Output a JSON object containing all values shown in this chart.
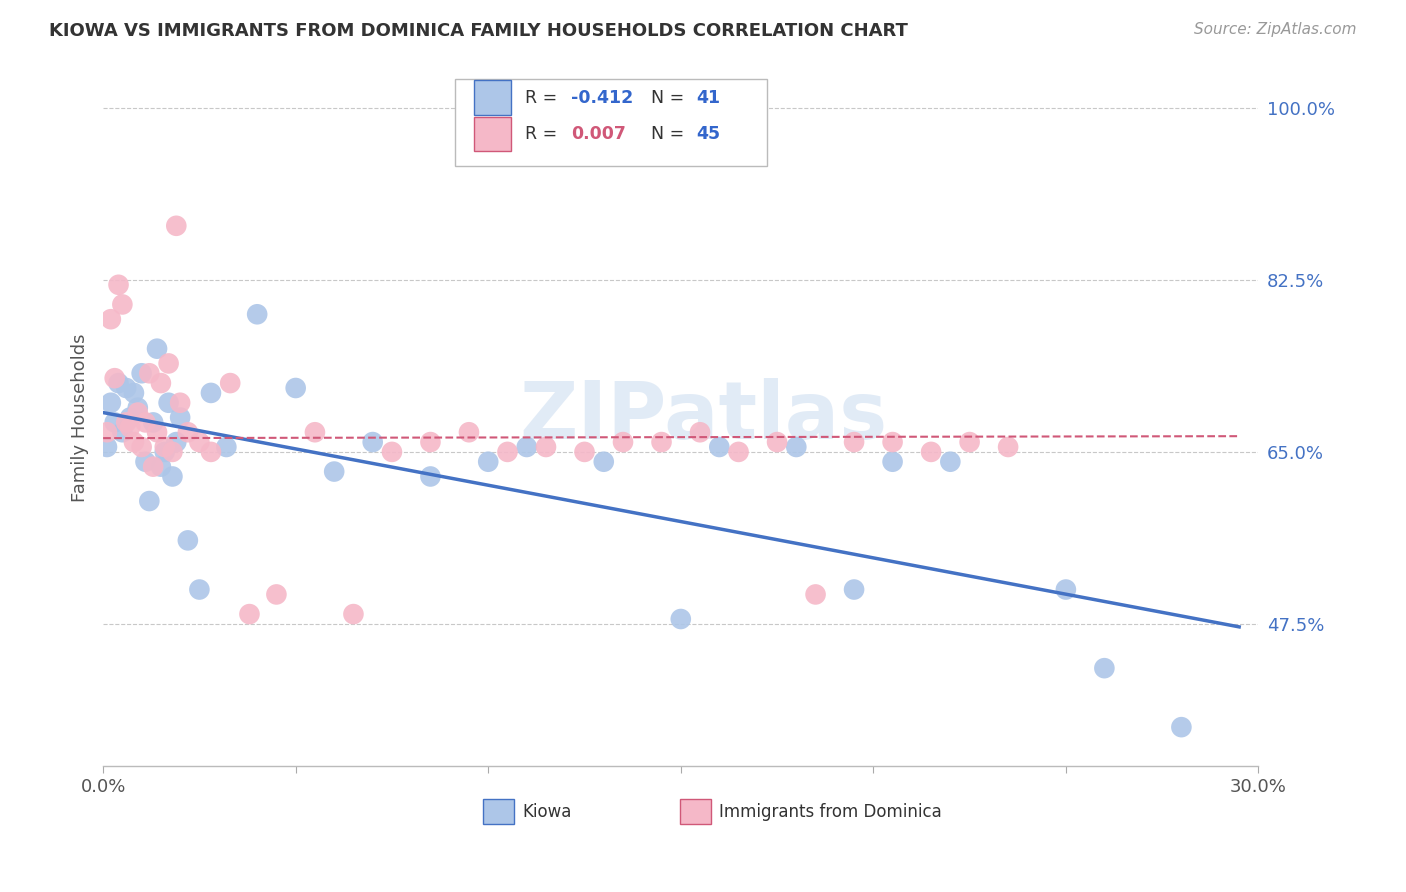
{
  "title": "KIOWA VS IMMIGRANTS FROM DOMINICA FAMILY HOUSEHOLDS CORRELATION CHART",
  "source": "Source: ZipAtlas.com",
  "ylabel": "Family Households",
  "xlim": [
    0.0,
    0.3
  ],
  "ylim": [
    0.33,
    1.04
  ],
  "yticks": [
    0.475,
    0.65,
    0.825,
    1.0
  ],
  "ytick_labels": [
    "47.5%",
    "65.0%",
    "82.5%",
    "100.0%"
  ],
  "xticks": [
    0.0,
    0.05,
    0.1,
    0.15,
    0.2,
    0.25,
    0.3
  ],
  "xtick_labels": [
    "0.0%",
    "",
    "",
    "",
    "",
    "",
    "30.0%"
  ],
  "background_color": "#ffffff",
  "grid_color": "#c8c8c8",
  "kiowa_color": "#adc6e8",
  "dominica_color": "#f5b8c8",
  "kiowa_line_color": "#4472c4",
  "dominica_line_color": "#d05878",
  "legend_R_kiowa": "-0.412",
  "legend_N_kiowa": "41",
  "legend_R_dominica": "0.007",
  "legend_N_dominica": "45",
  "kiowa_scatter_x": [
    0.001,
    0.002,
    0.003,
    0.004,
    0.005,
    0.006,
    0.007,
    0.008,
    0.009,
    0.01,
    0.011,
    0.012,
    0.013,
    0.014,
    0.015,
    0.016,
    0.017,
    0.018,
    0.019,
    0.02,
    0.022,
    0.025,
    0.028,
    0.032,
    0.04,
    0.05,
    0.06,
    0.07,
    0.085,
    0.1,
    0.11,
    0.13,
    0.15,
    0.16,
    0.18,
    0.195,
    0.205,
    0.22,
    0.25,
    0.26,
    0.28
  ],
  "kiowa_scatter_y": [
    0.655,
    0.7,
    0.68,
    0.72,
    0.67,
    0.715,
    0.685,
    0.71,
    0.695,
    0.73,
    0.64,
    0.6,
    0.68,
    0.755,
    0.635,
    0.65,
    0.7,
    0.625,
    0.66,
    0.685,
    0.56,
    0.51,
    0.71,
    0.655,
    0.79,
    0.715,
    0.63,
    0.66,
    0.625,
    0.64,
    0.655,
    0.64,
    0.48,
    0.655,
    0.655,
    0.51,
    0.64,
    0.64,
    0.51,
    0.43,
    0.37
  ],
  "dominica_scatter_x": [
    0.001,
    0.002,
    0.003,
    0.004,
    0.005,
    0.006,
    0.007,
    0.008,
    0.009,
    0.01,
    0.011,
    0.012,
    0.013,
    0.014,
    0.015,
    0.016,
    0.017,
    0.018,
    0.019,
    0.02,
    0.022,
    0.025,
    0.028,
    0.033,
    0.038,
    0.045,
    0.055,
    0.065,
    0.075,
    0.085,
    0.095,
    0.105,
    0.115,
    0.125,
    0.135,
    0.145,
    0.155,
    0.165,
    0.175,
    0.185,
    0.195,
    0.205,
    0.215,
    0.225,
    0.235
  ],
  "dominica_scatter_y": [
    0.67,
    0.785,
    0.725,
    0.82,
    0.8,
    0.68,
    0.675,
    0.66,
    0.69,
    0.655,
    0.68,
    0.73,
    0.635,
    0.67,
    0.72,
    0.655,
    0.74,
    0.65,
    0.88,
    0.7,
    0.67,
    0.66,
    0.65,
    0.72,
    0.485,
    0.505,
    0.67,
    0.485,
    0.65,
    0.66,
    0.67,
    0.65,
    0.655,
    0.65,
    0.66,
    0.66,
    0.67,
    0.65,
    0.66,
    0.505,
    0.66,
    0.66,
    0.65,
    0.66,
    0.655
  ],
  "kiowa_trendline_x": [
    0.0,
    0.295
  ],
  "kiowa_trendline_y": [
    0.69,
    0.472
  ],
  "dominica_trendline_x": [
    0.0,
    0.295
  ],
  "dominica_trendline_y": [
    0.664,
    0.666
  ]
}
